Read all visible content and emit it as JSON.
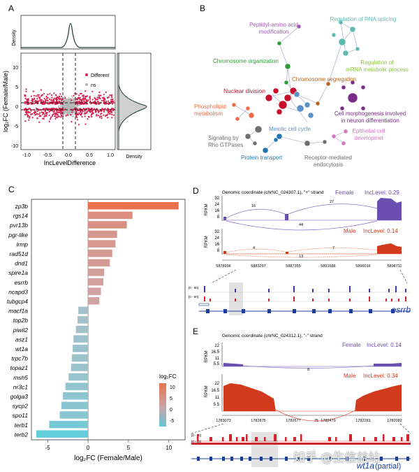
{
  "panels": {
    "A": {
      "letter": "A",
      "xlabel": "IncLevelDifference",
      "ylabel": "log₂FC (Female/Male)",
      "density_top": "Density",
      "density_right": "Density",
      "legend": [
        {
          "label": "Different",
          "color": "#d6204e"
        },
        {
          "label": "ns",
          "color": "#b5b5b5"
        }
      ],
      "xticks": [
        "-1.0",
        "-0.5",
        "0.0",
        "0.5",
        "1.0"
      ],
      "yticks": [
        "10",
        "5",
        "0",
        "-5",
        "-10"
      ]
    },
    "B": {
      "letter": "B",
      "clusters": [
        {
          "label": "Peptidyl-amino acid\nmodification",
          "color": "#a25bb8"
        },
        {
          "label": "Regulation of RNA splicing",
          "color": "#5fb9b1"
        },
        {
          "label": "Chromosome organization",
          "color": "#2a9d3a"
        },
        {
          "label": "Regulation of\nmRNA metabolic process",
          "color": "#8dc63f"
        },
        {
          "label": "Chromosome segregation",
          "color": "#b5651d"
        },
        {
          "label": "Nuclear division",
          "color": "#c8102e"
        },
        {
          "label": "Phospholipid\nmetabolism",
          "color": "#ef6c4a"
        },
        {
          "label": "Cell morphogenesis involved\nin neuron differentiation",
          "color": "#7b2c8b"
        },
        {
          "label": "Meiotic cell cycle",
          "color": "#5b8fc9"
        },
        {
          "label": "Signaling by\nRho GTPases",
          "color": "#6e6e6e"
        },
        {
          "label": "Epithelial cell\ndevelopmet",
          "color": "#d276c2"
        },
        {
          "label": "Protein transport",
          "color": "#1f77b4"
        },
        {
          "label": "Receptor-mediated\nendocytosis",
          "color": "#6d6d6d"
        }
      ]
    },
    "C": {
      "letter": "C",
      "legend_title": "log₂FC",
      "legend_ticks": [
        "10",
        "5",
        "0",
        "-5"
      ]
    },
    "D": {
      "letter": "D",
      "coord_title": "Genomic coordinate (chrNC_024307.1), \"+\" strand",
      "female_label": "Female",
      "female_inc": "IncLevel: 0.29",
      "male_label": "Male",
      "male_inc": "IncLevel: 0.14",
      "rpkm": "RPKM",
      "yticks": [
        "32",
        "24",
        "16",
        "8"
      ],
      "female_junctions": [
        "16",
        "27",
        "44"
      ],
      "male_junctions": [
        "4",
        "7",
        "13"
      ],
      "coords": [
        "5878996",
        "5883297",
        "5887355",
        "5891686",
        "5896016",
        "5898711"
      ],
      "track_range": "[0 - 80]",
      "gene": "esrrb"
    },
    "E": {
      "letter": "E",
      "coord_title": "Genomic coordinate (chrNC_024312.1), \"-\" strand",
      "female_label": "Female",
      "female_inc": "IncLevel: 0.14",
      "male_label": "Male",
      "male_inc": "IncLevel: 0.34",
      "rpkm": "RPKM",
      "yticks": [
        "22",
        "16.5",
        "11",
        "5.5"
      ],
      "female_junction": "8",
      "male_junction": "75",
      "coords": [
        "1783073",
        "1782875",
        "1782677",
        "1782479",
        "1782281",
        "1782082"
      ],
      "track_range": "[0 - 60]",
      "gene": "wt1a",
      "gene_suffix": "(partial)"
    }
  },
  "watermark": "知乎 @生信益站",
  "chart_data": [
    {
      "type": "scatter",
      "title": "",
      "xlabel": "IncLevelDifference",
      "ylabel": "log₂FC (Female/Male)",
      "xlim": [
        -1.1,
        1.1
      ],
      "ylim": [
        -12,
        12
      ],
      "series": [
        {
          "name": "Different"
        },
        {
          "name": "ns"
        }
      ],
      "thresholds": {
        "x": [
          -0.1,
          0.1
        ],
        "y": [
          -1,
          1
        ]
      }
    },
    {
      "type": "bar",
      "title": "",
      "xlabel": "log₂FC (Female/Male)",
      "ylabel": "",
      "xlim": [
        -7,
        12
      ],
      "xticks": [
        -5,
        0,
        5,
        10
      ],
      "categories": [
        "zp3b",
        "rgs14",
        "pvr13b",
        "pgr-like",
        "lrmp",
        "rad51d",
        "dnd1",
        "spire1a",
        "esrrb",
        "ncapd3",
        "tubgcp4",
        "macf1a",
        "top2b",
        "piwil2",
        "asz1",
        "wt1a",
        "trpc7b",
        "topaz1",
        "msh5",
        "nr3c1",
        "golga3",
        "sycp2",
        "spo11",
        "terb1",
        "terb2"
      ],
      "values": [
        11.2,
        5.5,
        4.8,
        3.6,
        3.4,
        3.0,
        2.7,
        2.0,
        1.9,
        1.6,
        1.4,
        -1.2,
        -1.3,
        -1.5,
        -1.8,
        -1.9,
        -2.0,
        -2.1,
        -2.4,
        -2.8,
        -3.1,
        -3.3,
        -3.5,
        -4.8,
        -6.4
      ]
    }
  ]
}
